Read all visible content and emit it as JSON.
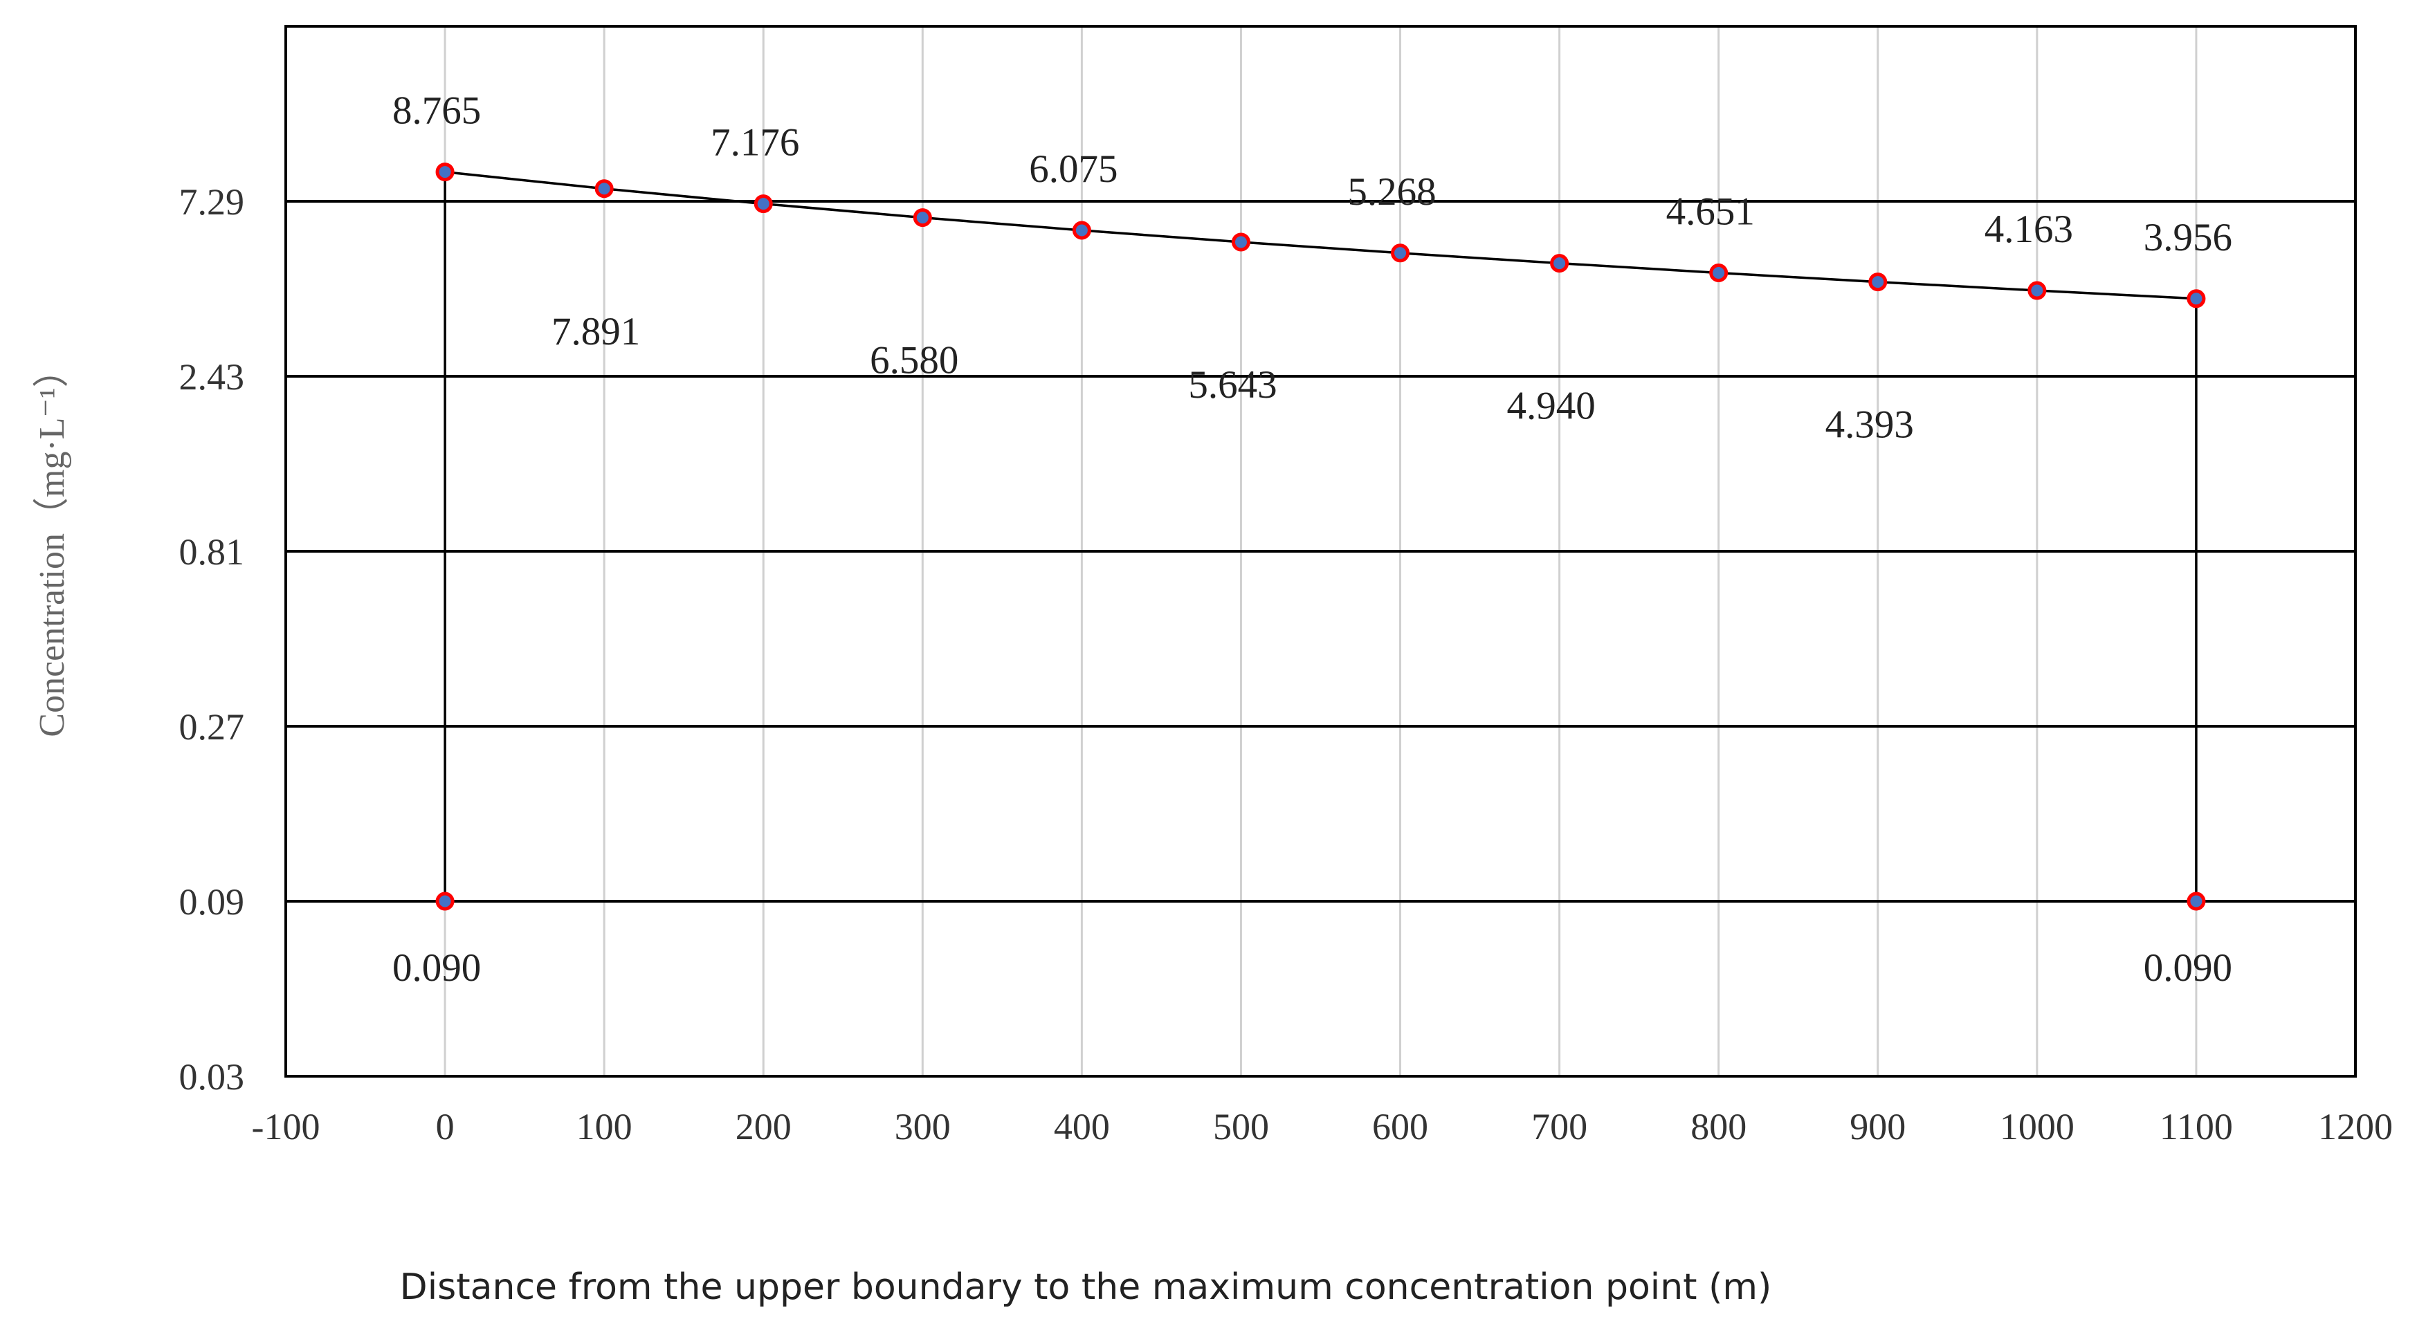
{
  "chart_data": {
    "type": "line",
    "xlabel": "Distance from the upper boundary to the maximum concentration point (m)",
    "ylabel": "Concentration（mg·L⁻¹）",
    "xlim": [
      -100,
      1200
    ],
    "x_ticks": [
      "-100",
      "0",
      "100",
      "200",
      "300",
      "400",
      "500",
      "600",
      "700",
      "800",
      "900",
      "1000",
      "1100",
      "1200"
    ],
    "y_scale": "log",
    "ylim": [
      0.03,
      21.87
    ],
    "y_ticks": [
      "0.03",
      "0.09",
      "0.27",
      "0.81",
      "2.43",
      "7.29"
    ],
    "grid": true,
    "colors": {
      "marker_fill": "#4472c4",
      "marker_edge": "#ff0000",
      "line": "#000000",
      "grid_major": "#000000",
      "grid_minor": "#d0d0d0"
    },
    "series": [
      {
        "x": [
          0,
          100,
          200,
          300,
          400,
          500,
          600,
          700,
          800,
          900,
          1000,
          1100
        ],
        "y": [
          8.765,
          7.891,
          7.176,
          6.58,
          6.075,
          5.643,
          5.268,
          4.94,
          4.651,
          4.393,
          4.163,
          3.956
        ],
        "labels": [
          "8.765",
          "7.891",
          "7.176",
          "6.580",
          "6.075",
          "5.643",
          "5.268",
          "4.940",
          "4.651",
          "4.393",
          "4.163",
          "3.956"
        ],
        "label_positions": [
          "above",
          "below",
          "above",
          "below",
          "above",
          "below",
          "above",
          "below",
          "above",
          "below",
          "above",
          "above"
        ]
      },
      {
        "x": [
          0,
          0
        ],
        "y": [
          0.09,
          8.765
        ],
        "labels": [
          "0.090",
          ""
        ],
        "label_positions": [
          "below",
          "none"
        ]
      },
      {
        "x": [
          1100,
          1100
        ],
        "y": [
          0.09,
          3.956
        ],
        "labels": [
          "0.090",
          ""
        ],
        "label_positions": [
          "below",
          "none"
        ]
      }
    ]
  }
}
